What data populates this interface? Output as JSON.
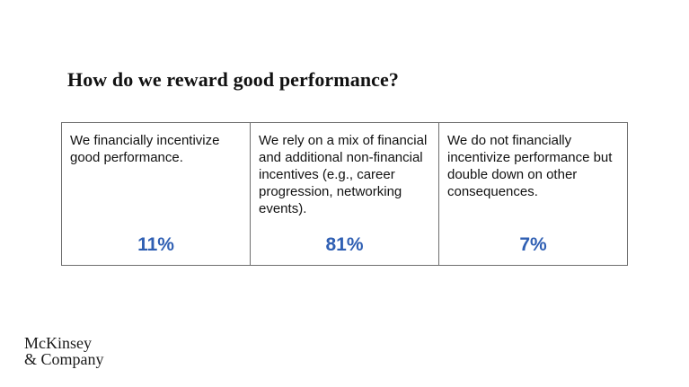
{
  "title": "How do we reward good performance?",
  "options": [
    {
      "text": "We financially incentivize good performance.",
      "percent": "11%"
    },
    {
      "text": "We rely on a mix of financial and additional non-financial incentives (e.g., career progression, networking events).",
      "percent": "81%"
    },
    {
      "text": "We do not financially incentivize performance but double down on other consequences.",
      "percent": "7%"
    }
  ],
  "logo": {
    "line1": "McKinsey",
    "line2": "& Company"
  },
  "colors": {
    "accent": "#2f5fb3",
    "border": "#6e6e6e"
  }
}
